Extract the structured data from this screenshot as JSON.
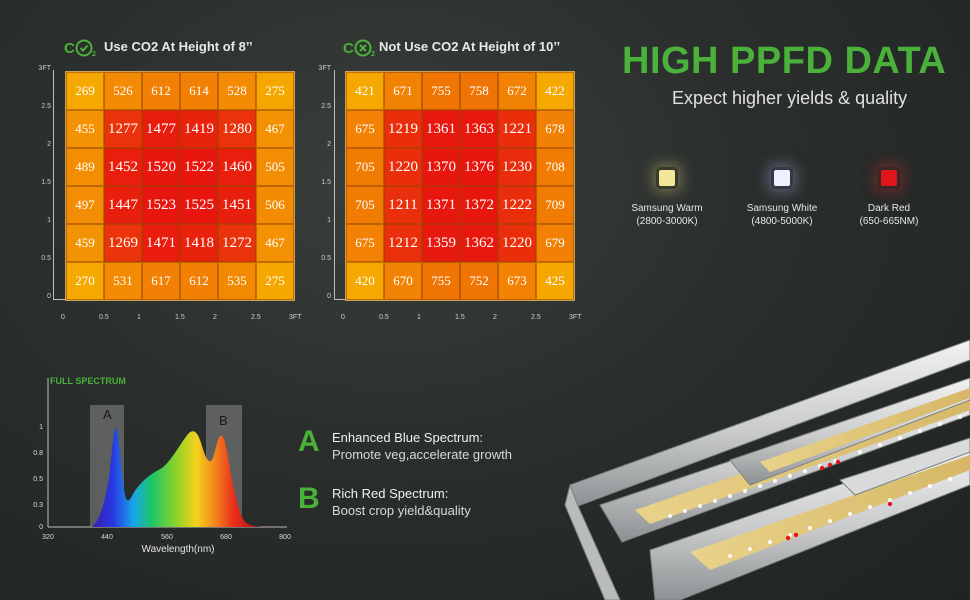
{
  "grids": [
    {
      "title": "Use CO2  At Height of 8’’",
      "icon": "co2-check-icon",
      "values": [
        [
          269,
          526,
          612,
          614,
          528,
          275
        ],
        [
          455,
          1277,
          1477,
          1419,
          1280,
          467
        ],
        [
          489,
          1452,
          1520,
          1522,
          1460,
          505
        ],
        [
          497,
          1447,
          1523,
          1525,
          1451,
          506
        ],
        [
          459,
          1269,
          1471,
          1418,
          1272,
          467
        ],
        [
          270,
          531,
          617,
          612,
          535,
          275
        ]
      ],
      "y_ticks": [
        "3FT",
        "2.5",
        "2",
        "1.5",
        "1",
        "0.5",
        "0"
      ],
      "x_ticks": [
        "0",
        "0.5",
        "1",
        "1.5",
        "2",
        "2.5",
        "3FT"
      ]
    },
    {
      "title": "Not Use CO2  At Height of 10’’",
      "icon": "co2-cross-icon",
      "values": [
        [
          421,
          671,
          755,
          758,
          672,
          422
        ],
        [
          675,
          1219,
          1361,
          1363,
          1221,
          678
        ],
        [
          705,
          1220,
          1370,
          1376,
          1230,
          708
        ],
        [
          705,
          1211,
          1371,
          1372,
          1222,
          709
        ],
        [
          675,
          1212,
          1359,
          1362,
          1220,
          679
        ],
        [
          420,
          670,
          755,
          752,
          673,
          425
        ]
      ],
      "y_ticks": [
        "3FT",
        "2.5",
        "2",
        "1.5",
        "1",
        "0.5",
        "0"
      ],
      "x_ticks": [
        "0",
        "0.5",
        "1",
        "1.5",
        "2",
        "2.5",
        "3FT"
      ]
    }
  ],
  "headline": "HIGH PPFD DATA",
  "subheadline": "Expect higher yields & quality",
  "leds": [
    {
      "name": "Samsung Warm",
      "range": "(2800-3000K)",
      "color": "#f4e79a"
    },
    {
      "name": "Samsung White",
      "range": "(4800-5000K)",
      "color": "#eef2ff"
    },
    {
      "name": "Dark Red",
      "range": "(650-665NM)",
      "color": "#e0161c"
    }
  ],
  "spectrum": {
    "title": "FULL SPECTRUM",
    "xlabel": "Wavelength(nm)",
    "x_ticks": [
      "320",
      "440",
      "560",
      "680",
      "800"
    ],
    "y_ticks": [
      "1",
      "0.8",
      "0.5",
      "0.3",
      "0"
    ],
    "band_a": "A",
    "band_b": "B"
  },
  "features": [
    {
      "letter": "A",
      "title": "Enhanced Blue Spectrum:",
      "desc": "Promote veg,accelerate growth"
    },
    {
      "letter": "B",
      "title": "Rich Red Spectrum:",
      "desc": "Boost crop yield&quality"
    }
  ],
  "colors": {
    "accent": "#4ab13b",
    "heat_low": "#f5a400",
    "heat_high": "#e8120e"
  }
}
